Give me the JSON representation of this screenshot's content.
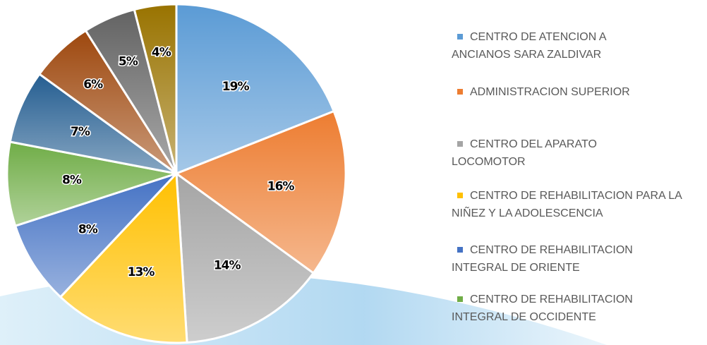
{
  "chart_data": {
    "type": "pie",
    "categories": [
      "CENTRO DE ATENCION A ANCIANOS SARA ZALDIVAR",
      "ADMINISTRACION SUPERIOR",
      "CENTRO DEL APARATO LOCOMOTOR",
      "CENTRO DE REHABILITACION PARA LA NIÑEZ Y LA ADOLESCENCIA",
      "CENTRO DE REHABILITACION INTEGRAL DE ORIENTE",
      "CENTRO DE REHABILITACION INTEGRAL DE OCCIDENTE",
      null,
      null,
      null,
      null
    ],
    "values": [
      19,
      16,
      14,
      13,
      8,
      8,
      7,
      6,
      5,
      4
    ],
    "value_labels": [
      "19%",
      "16%",
      "14%",
      "13%",
      "8%",
      "8%",
      "7%",
      "6%",
      "5%",
      "4%"
    ],
    "colors": [
      "#5b9bd5",
      "#ed7d31",
      "#a5a5a5",
      "#ffc000",
      "#4472c4",
      "#70ad47",
      "#255e91",
      "#9e480e",
      "#636363",
      "#997300"
    ]
  }
}
